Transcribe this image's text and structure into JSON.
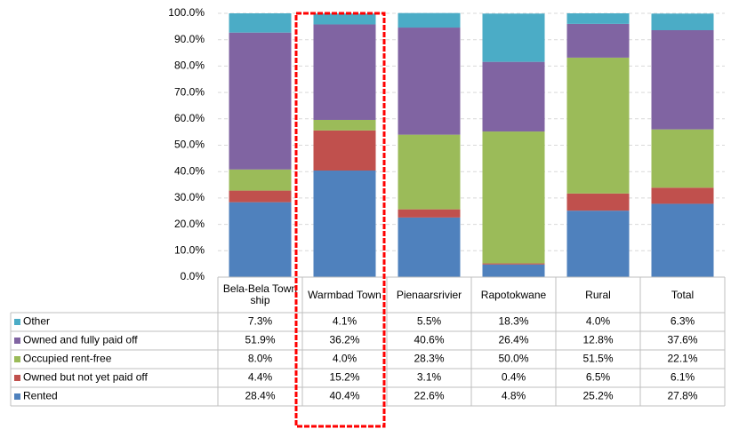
{
  "chart_data": {
    "type": "stacked_bar",
    "categories": [
      "Bela-Bela Township",
      "Warmbad Town",
      "Pienaarsrivier",
      "Rapotokwane",
      "Rural",
      "Total"
    ],
    "series": [
      {
        "name": "Rented",
        "color": "#4f81bd",
        "values": [
          28.4,
          40.4,
          22.6,
          4.8,
          25.2,
          27.8
        ],
        "value_labels": [
          "28.4%",
          "40.4%",
          "22.6%",
          "4.8%",
          "25.2%",
          "27.8%"
        ]
      },
      {
        "name": "Owned but not yet paid off",
        "color": "#c0504d",
        "values": [
          4.4,
          15.2,
          3.1,
          0.4,
          6.5,
          6.1
        ],
        "value_labels": [
          "4.4%",
          "15.2%",
          "3.1%",
          "0.4%",
          "6.5%",
          "6.1%"
        ]
      },
      {
        "name": "Occupied rent-free",
        "color": "#9bbb59",
        "values": [
          8.0,
          4.0,
          28.3,
          50.0,
          51.5,
          22.1
        ],
        "value_labels": [
          "8.0%",
          "4.0%",
          "28.3%",
          "50.0%",
          "51.5%",
          "22.1%"
        ]
      },
      {
        "name": "Owned and fully paid off",
        "color": "#8064a2",
        "values": [
          51.9,
          36.2,
          40.6,
          26.4,
          12.8,
          37.6
        ],
        "value_labels": [
          "51.9%",
          "36.2%",
          "40.6%",
          "26.4%",
          "12.8%",
          "37.6%"
        ]
      },
      {
        "name": "Other",
        "color": "#4bacc6",
        "values": [
          7.3,
          4.1,
          5.5,
          18.3,
          4.0,
          6.3
        ],
        "value_labels": [
          "7.3%",
          "4.1%",
          "5.5%",
          "18.3%",
          "4.0%",
          "6.3%"
        ]
      }
    ],
    "ylim": [
      0,
      100
    ],
    "yticks": [
      {
        "value": 0,
        "label": "0.0%"
      },
      {
        "value": 10,
        "label": "10.0%"
      },
      {
        "value": 20,
        "label": "20.0%"
      },
      {
        "value": 30,
        "label": "30.0%"
      },
      {
        "value": 40,
        "label": "40.0%"
      },
      {
        "value": 50,
        "label": "50.0%"
      },
      {
        "value": 60,
        "label": "60.0%"
      },
      {
        "value": 70,
        "label": "70.0%"
      },
      {
        "value": 80,
        "label": "80.0%"
      },
      {
        "value": 90,
        "label": "90.0%"
      },
      {
        "value": 100,
        "label": "100.0%"
      }
    ],
    "grid": true
  }
}
